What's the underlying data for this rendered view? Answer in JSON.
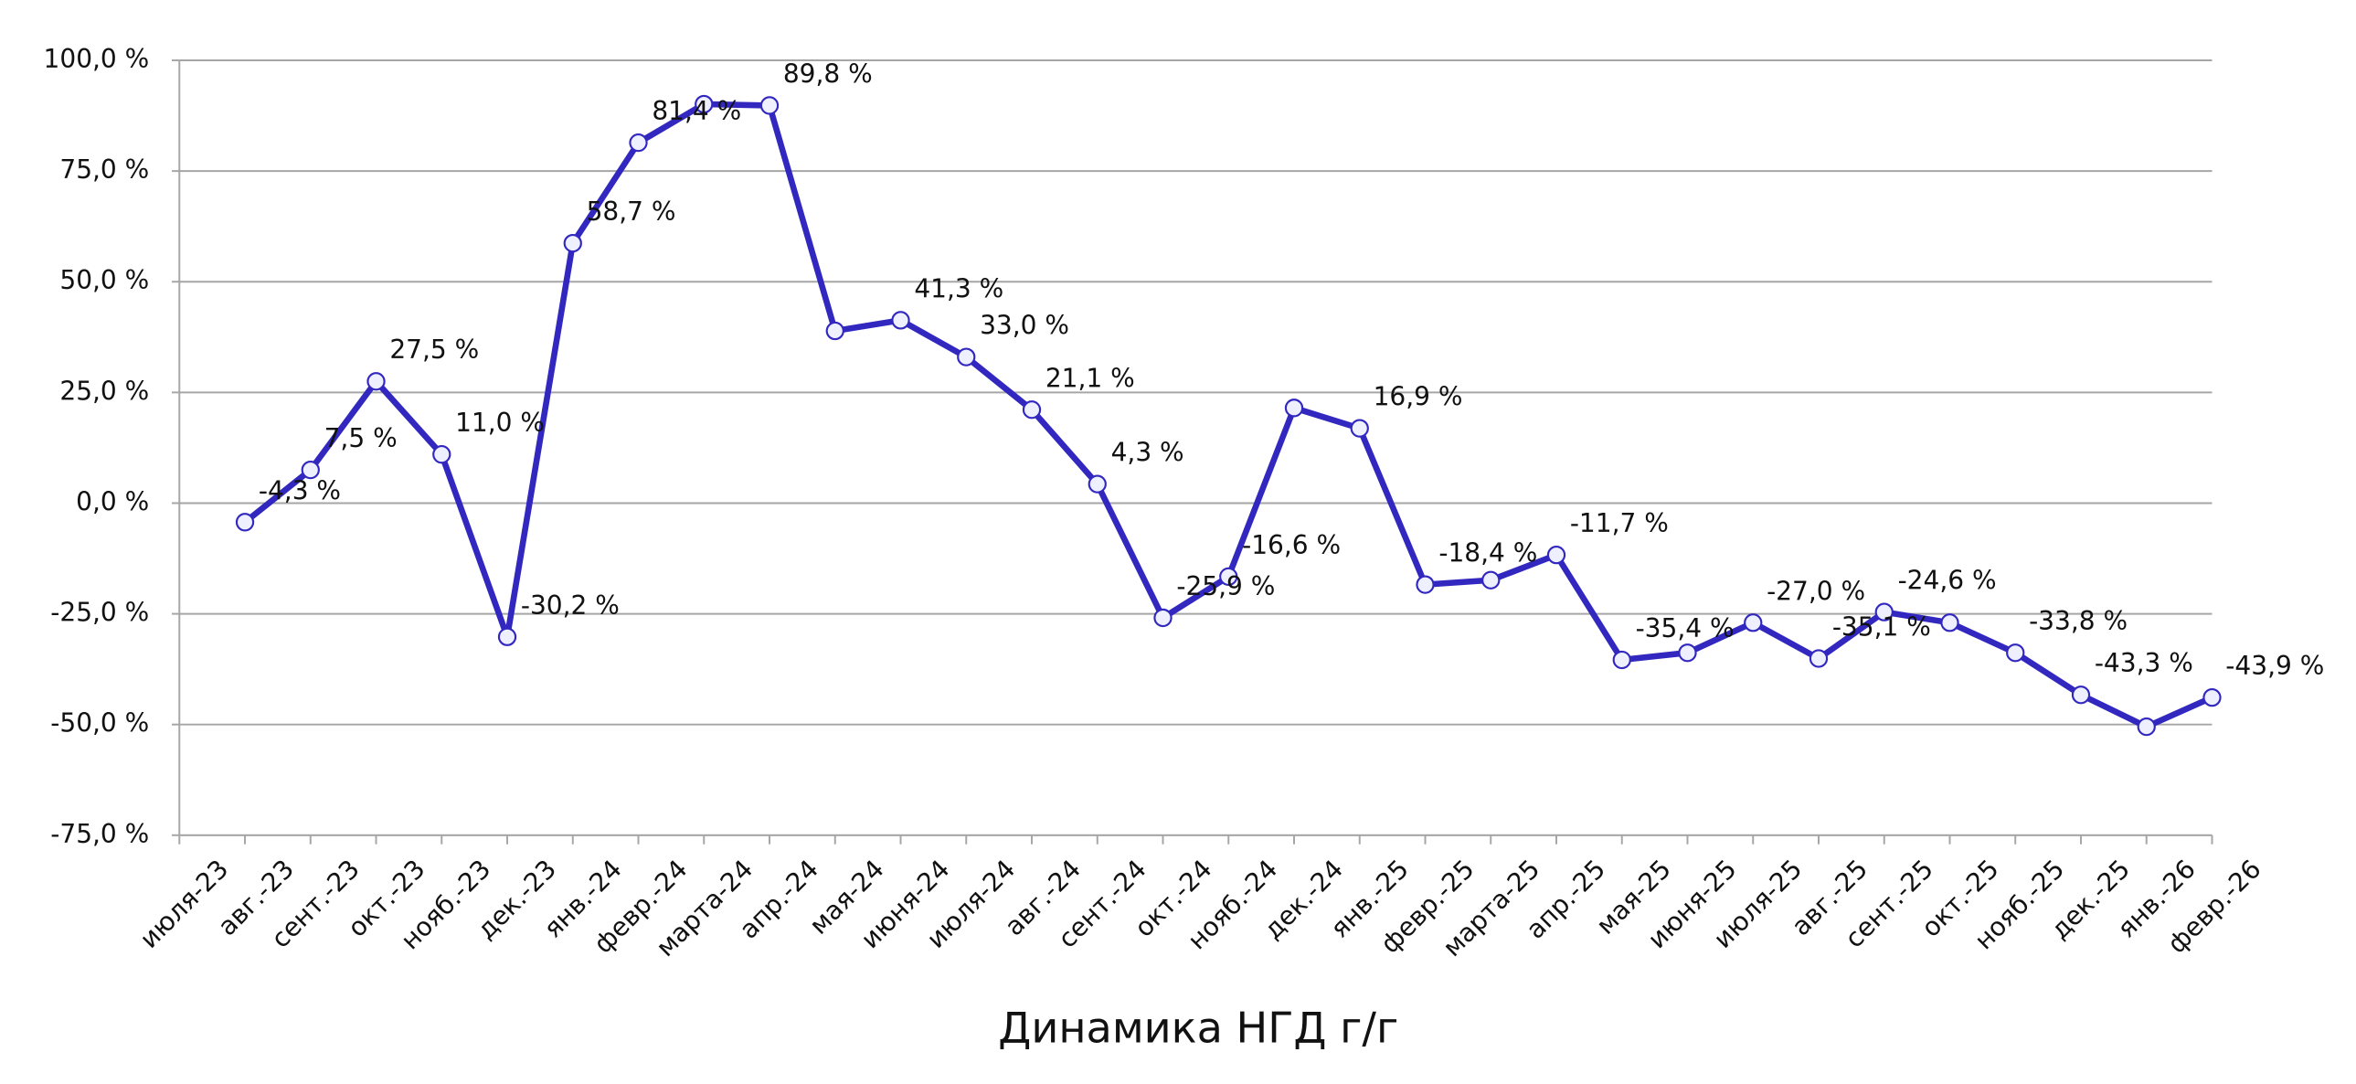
{
  "chart_data": {
    "type": "line",
    "title": "Динамика НГД г/г",
    "categories": [
      "июля-23",
      "авг.-23",
      "сент.-23",
      "окт.-23",
      "нояб.-23",
      "дек.-23",
      "янв.-24",
      "февр.-24",
      "марта-24",
      "апр.-24",
      "мая-24",
      "июня-24",
      "июля-24",
      "авг.-24",
      "сент.-24",
      "окт.-24",
      "нояб.-24",
      "дек.-24",
      "янв.-25",
      "февр.-25",
      "марта-25",
      "апр.-25",
      "мая-25",
      "июня-25",
      "июля-25",
      "авг.-25",
      "сент.-25",
      "окт.-25",
      "нояб.-25",
      "дек.-25",
      "янв.-26",
      "февр.-26"
    ],
    "series": [
      {
        "color": "#3228c0",
        "values": [
          null,
          -4.3,
          7.5,
          27.5,
          11.0,
          -30.2,
          58.7,
          81.4,
          90.1,
          89.8,
          38.9,
          41.3,
          33.0,
          21.1,
          4.3,
          -25.9,
          -16.6,
          21.5,
          16.9,
          -18.4,
          -17.4,
          -11.7,
          -35.4,
          -33.8,
          -27.0,
          -35.1,
          -24.6,
          -27.0,
          -33.8,
          -43.3,
          -50.5,
          -43.9
        ],
        "value_labels": [
          null,
          "-4,3 %",
          "7,5 %",
          "27,5 %",
          "11,0 %",
          "-30,2 %",
          "58,7 %",
          "81,4 %",
          null,
          "89,8 %",
          null,
          "41,3 %",
          "33,0 %",
          "21,1 %",
          "4,3 %",
          "-25,9 %",
          "-16,6 %",
          null,
          "16,9 %",
          "-18,4 %",
          null,
          "-11,7 %",
          "-35,4 %",
          null,
          "-27,0 %",
          "-35,1 %",
          "-24,6 %",
          null,
          "-33,8 %",
          "-43,3 %",
          null,
          "-43,9 %"
        ]
      }
    ],
    "ylim": [
      -75,
      100
    ],
    "yticks": [
      {
        "value": -75,
        "label": "-75,0 %"
      },
      {
        "value": -50,
        "label": "-50,0 %"
      },
      {
        "value": -25,
        "label": "-25,0 %"
      },
      {
        "value": 0,
        "label": "0,0 %"
      },
      {
        "value": 25,
        "label": "25,0 %"
      },
      {
        "value": 50,
        "label": "50,0 %"
      },
      {
        "value": 75,
        "label": "75,0 %"
      },
      {
        "value": 100,
        "label": "100,0 %"
      }
    ],
    "grid": true
  }
}
